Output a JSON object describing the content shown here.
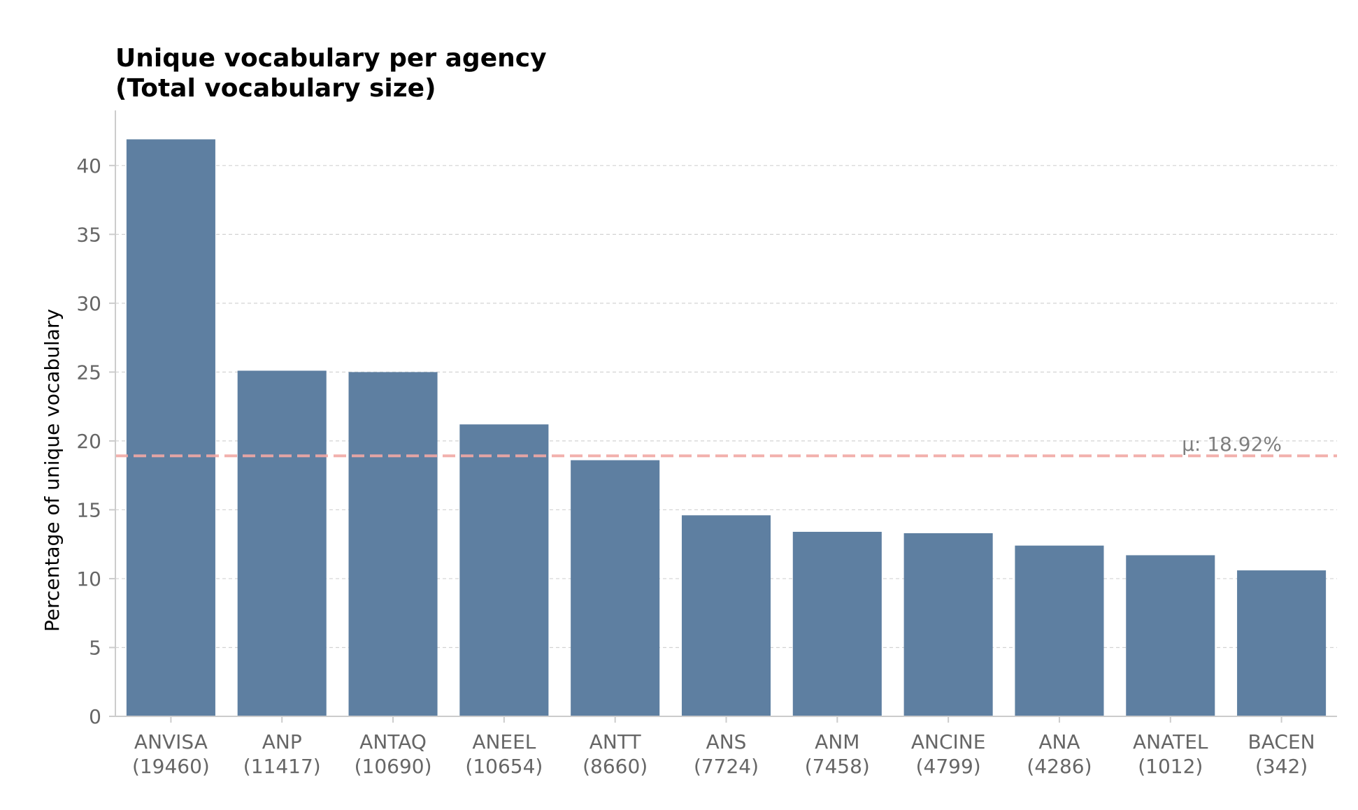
{
  "chart_data": {
    "type": "bar",
    "title_line1": "Unique vocabulary per agency",
    "title_line2": "(Total vocabulary size)",
    "xlabel": "",
    "ylabel": "Percentage of unique vocabulary",
    "ylim": [
      0,
      44
    ],
    "yticks": [
      0,
      5,
      10,
      15,
      20,
      25,
      30,
      35,
      40
    ],
    "grid": "horizontal dashed",
    "categories": [
      "ANVISA",
      "ANP",
      "ANTAQ",
      "ANEEL",
      "ANTT",
      "ANS",
      "ANM",
      "ANCINE",
      "ANA",
      "ANATEL",
      "BACEN"
    ],
    "category_sublabels": [
      "(19460)",
      "(11417)",
      "(10690)",
      "(10654)",
      "(8660)",
      "(7724)",
      "(7458)",
      "(4799)",
      "(4286)",
      "(1012)",
      "(342)"
    ],
    "total_vocabulary": [
      19460,
      11417,
      10690,
      10654,
      8660,
      7724,
      7458,
      4799,
      4286,
      1012,
      342
    ],
    "values": [
      41.9,
      25.1,
      25.0,
      21.2,
      18.6,
      14.6,
      13.4,
      13.3,
      12.4,
      11.7,
      10.6
    ],
    "mean": 18.92,
    "mean_label": "μ: 18.92%",
    "colors": {
      "bar": "#5e7fa1",
      "mean_line": "#f1a9a4",
      "grid": "#d3d3d3",
      "axis": "#cccccc",
      "tick_text": "#666666"
    }
  }
}
